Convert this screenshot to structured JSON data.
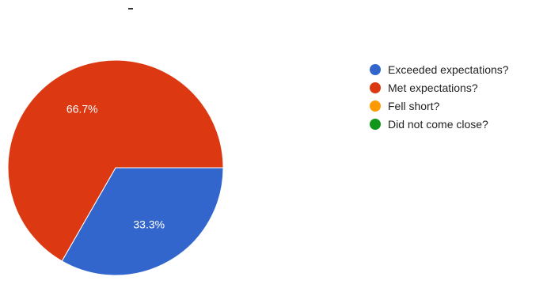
{
  "chart_data": {
    "type": "pie",
    "categories": [
      "Exceeded expectations?",
      "Met expectations?",
      "Fell short?",
      "Did not come close?"
    ],
    "values": [
      33.3,
      66.7,
      0,
      0
    ],
    "value_labels": [
      "33.3%",
      "66.7%",
      "",
      ""
    ],
    "colors": [
      "#3366cc",
      "#dc3912",
      "#ff9900",
      "#109618"
    ],
    "legend_position": "right",
    "title": ""
  }
}
